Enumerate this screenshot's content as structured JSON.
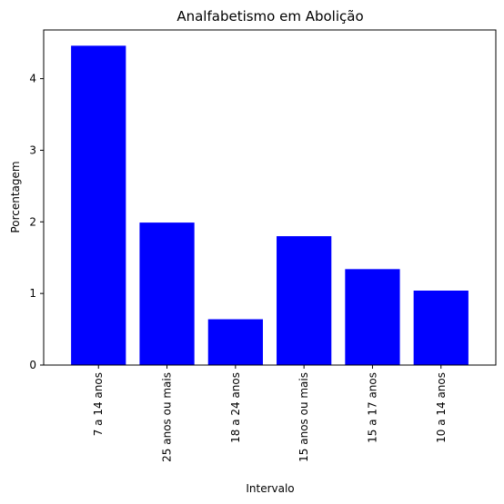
{
  "chart_data": {
    "type": "bar",
    "title": "Analfabetismo em Abolição",
    "xlabel": "Intervalo",
    "ylabel": "Porcentagem",
    "categories": [
      "7 a 14 anos",
      "25 anos ou mais",
      "18 a 24 anos",
      "15 anos ou mais",
      "15 a 17 anos",
      "10 a 14 anos"
    ],
    "values": [
      4.46,
      1.99,
      0.64,
      1.8,
      1.34,
      1.04
    ],
    "ylim": [
      0,
      4.68
    ],
    "yticks": [
      "0",
      "1",
      "2",
      "3",
      "4"
    ],
    "bar_color": "#0000ff",
    "grid": false,
    "legend": "none"
  }
}
